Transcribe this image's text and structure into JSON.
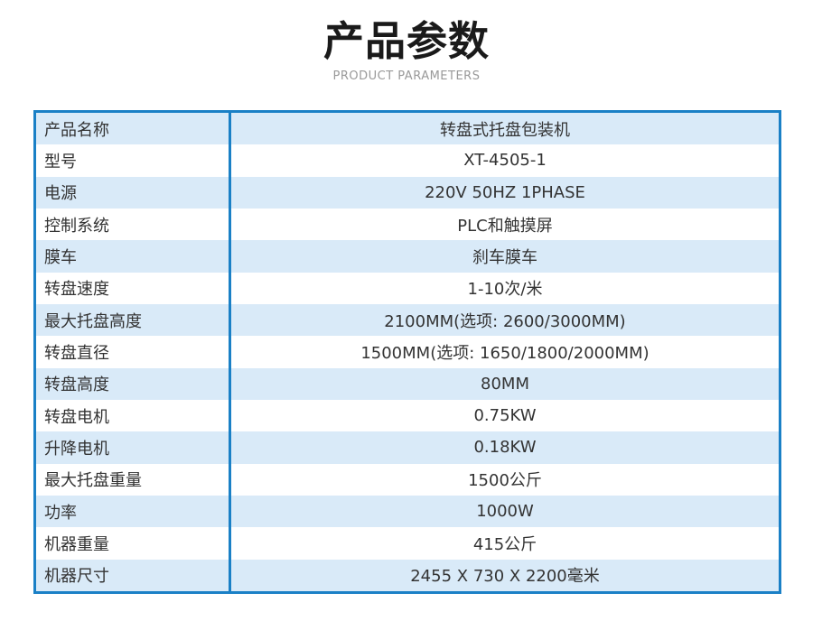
{
  "header": {
    "title": "产品参数",
    "subtitle": "PRODUCT PARAMETERS"
  },
  "colors": {
    "border_blue": "#1a80c6",
    "row_alt_blue": "#d9eaf8",
    "row_white": "#ffffff",
    "title_black": "#1a1a1a",
    "subtitle_gray": "#999999",
    "text_dark": "#333333"
  },
  "table": {
    "rows": [
      {
        "label": "产品名称",
        "value": "转盘式托盘包装机"
      },
      {
        "label": "型号",
        "value": "XT-4505-1"
      },
      {
        "label": "电源",
        "value": "220V 50HZ 1PHASE"
      },
      {
        "label": "控制系统",
        "value": "PLC和触摸屏"
      },
      {
        "label": "膜车",
        "value": "刹车膜车"
      },
      {
        "label": "转盘速度",
        "value": "1-10次/米"
      },
      {
        "label": "最大托盘高度",
        "value": "2100MM(选项: 2600/3000MM)"
      },
      {
        "label": "转盘直径",
        "value": "1500MM(选项: 1650/1800/2000MM)"
      },
      {
        "label": "转盘高度",
        "value": "80MM"
      },
      {
        "label": "转盘电机",
        "value": "0.75KW"
      },
      {
        "label": "升降电机",
        "value": "0.18KW"
      },
      {
        "label": "最大托盘重量",
        "value": "1500公斤"
      },
      {
        "label": "功率",
        "value": "1000W"
      },
      {
        "label": "机器重量",
        "value": "415公斤"
      },
      {
        "label": "机器尺寸",
        "value": "2455 X 730 X 2200毫米"
      }
    ]
  }
}
